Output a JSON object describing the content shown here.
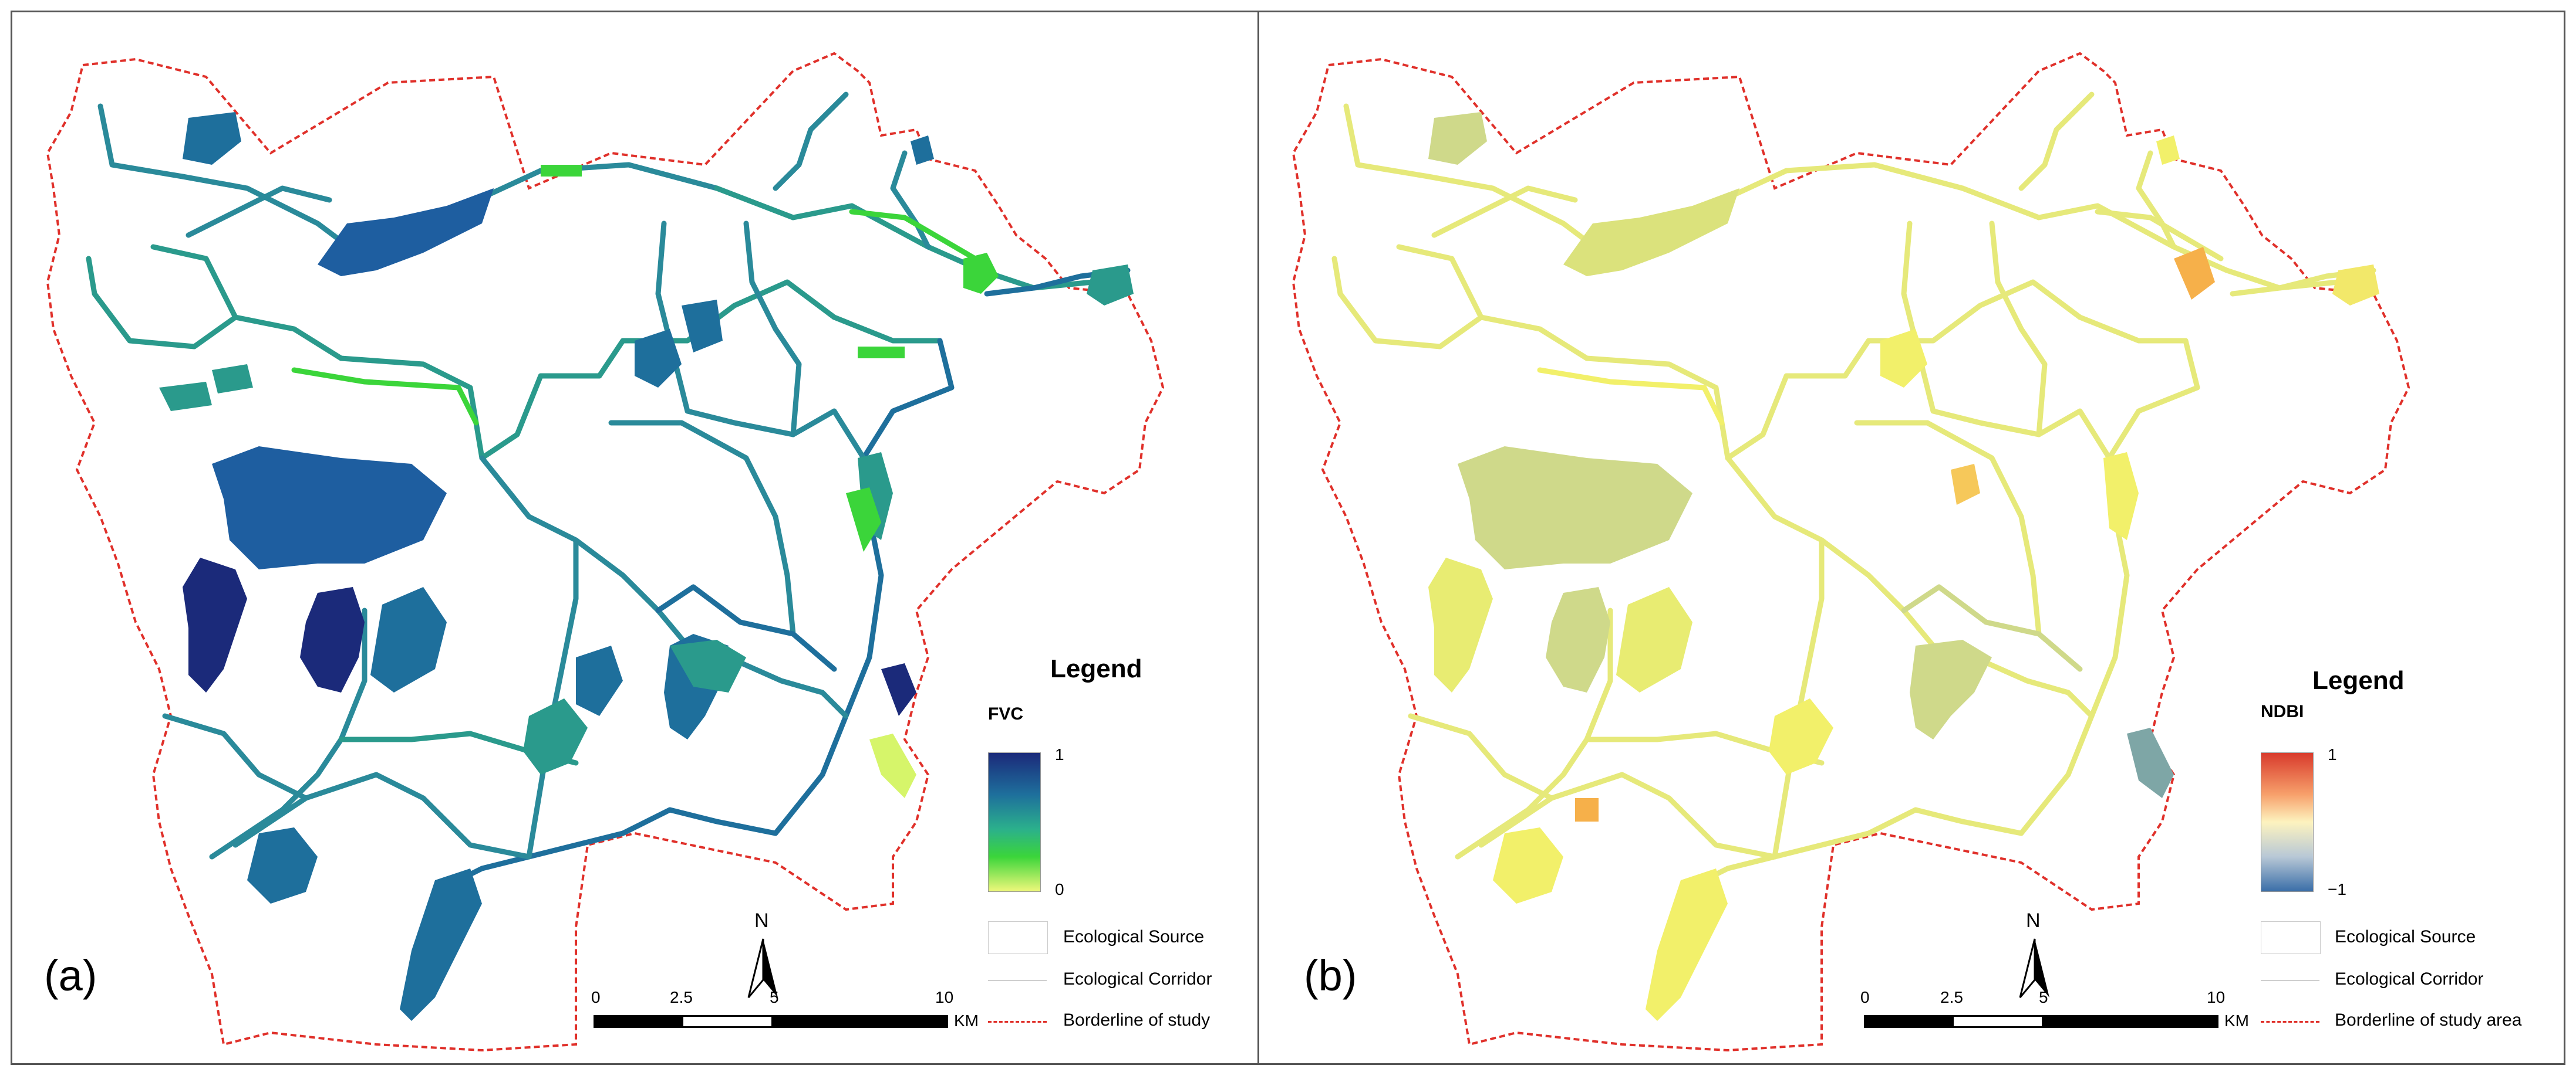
{
  "panels": [
    {
      "label": "(a)",
      "legend_title": "Legend",
      "ramp_title": "FVC",
      "ramp_max": "1",
      "ramp_min": "0",
      "ramp_colors": [
        "#1b2a7a",
        "#1e6f9c",
        "#2bb08c",
        "#3bd53a",
        "#eef87a"
      ],
      "legend_items": [
        "Ecological Source",
        "Ecological Corridor",
        "Borderline of study"
      ],
      "north": "N",
      "scale_ticks": [
        "0",
        "2.5",
        "5",
        "10"
      ],
      "scale_unit": "KM"
    },
    {
      "label": "(b)",
      "legend_title": "Legend",
      "ramp_title": "NDBI",
      "ramp_max": "1",
      "ramp_min": "−1",
      "ramp_colors": [
        "#d83a2c",
        "#f7a06b",
        "#fdf3bf",
        "#b8c8d6",
        "#3a6ea8"
      ],
      "legend_items": [
        "Ecological Source",
        "Ecological Corridor",
        "Borderline of study area"
      ],
      "north": "N",
      "scale_ticks": [
        "0",
        "2.5",
        "5",
        "10"
      ],
      "scale_unit": "KM"
    }
  ],
  "colors": {
    "boundary": "#e0302a",
    "fvc_dark": "#1b2a7a",
    "fvc_mid": "#1e6f9c",
    "fvc_teal": "#2a9a8c",
    "fvc_green": "#3bd53a",
    "fvc_light": "#d6f56a",
    "ndbi_yellow": "#f2f06a",
    "ndbi_sage": "#cfd98a",
    "ndbi_orange": "#f6b04a",
    "ndbi_blue": "#7ea6a6"
  }
}
